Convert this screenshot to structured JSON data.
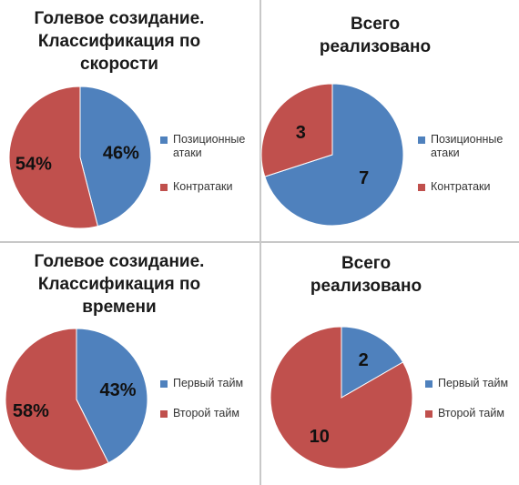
{
  "colors": {
    "series1": "#4F81BD",
    "series2": "#C0504D",
    "divider": "#c8c8c8"
  },
  "chart_data": [
    {
      "type": "pie",
      "title_lines": [
        "Голевое созидание.",
        "Классификация по",
        "скорости"
      ],
      "categories": [
        "Позиционные атаки",
        "Контратаки"
      ],
      "values": [
        46,
        54
      ],
      "data_labels": [
        "46%",
        "54%"
      ],
      "legend_position": "right"
    },
    {
      "type": "pie",
      "title_lines": [
        "Всего",
        "реализовано"
      ],
      "categories": [
        "Позиционные атаки",
        "Контратаки"
      ],
      "values": [
        7,
        3
      ],
      "data_labels": [
        "7",
        "3"
      ],
      "legend_position": "right"
    },
    {
      "type": "pie",
      "title_lines": [
        "Голевое созидание.",
        "Классификация по",
        "времени"
      ],
      "categories": [
        "Первый тайм",
        "Второй тайм"
      ],
      "values": [
        43,
        58
      ],
      "data_labels": [
        "43%",
        "58%"
      ],
      "legend_position": "right"
    },
    {
      "type": "pie",
      "title_lines": [
        "Всего",
        "реализовано"
      ],
      "categories": [
        "Первый тайм",
        "Второй тайм"
      ],
      "values": [
        2,
        10
      ],
      "data_labels": [
        "2",
        "10"
      ],
      "legend_position": "right"
    }
  ],
  "legends": [
    {
      "items": [
        {
          "lines": [
            "Позиционные",
            "атаки"
          ]
        },
        {
          "lines": [
            "Контратаки"
          ]
        }
      ]
    },
    {
      "items": [
        {
          "lines": [
            "Позиционные",
            "атаки"
          ]
        },
        {
          "lines": [
            "Контратаки"
          ]
        }
      ]
    },
    {
      "items": [
        {
          "lines": [
            "Первый тайм"
          ]
        },
        {
          "lines": [
            "Второй тайм"
          ]
        }
      ]
    },
    {
      "items": [
        {
          "lines": [
            "Первый тайм"
          ]
        },
        {
          "lines": [
            "Второй тайм"
          ]
        }
      ]
    }
  ]
}
